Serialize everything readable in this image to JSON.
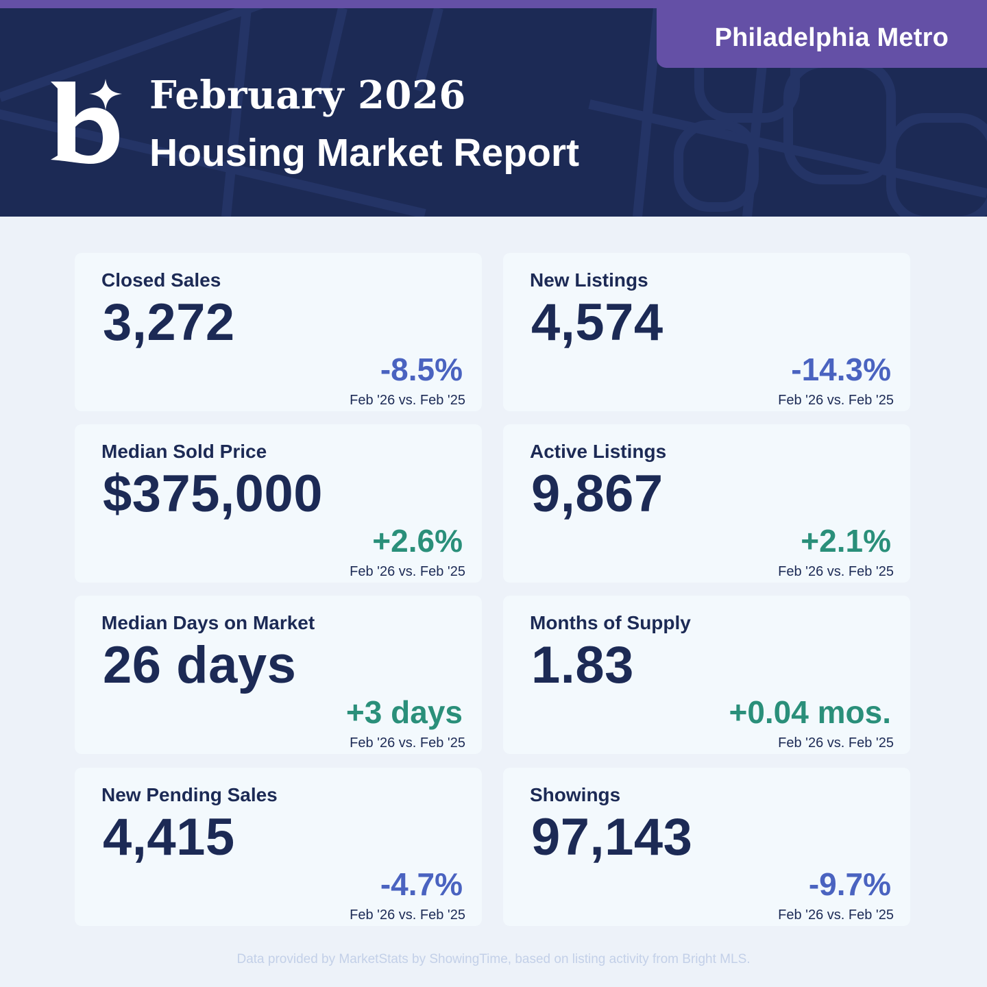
{
  "header": {
    "region": "Philadelphia Metro",
    "title_line1": "February 2026",
    "title_line2": "Housing Market Report",
    "logo_icon": "b-sparkle-logo"
  },
  "colors": {
    "navy": "#1c2a55",
    "purple": "#6450a6",
    "card": "#f3f9fd",
    "page": "#edf2f9",
    "negative": "#4a63c0",
    "positive": "#2a8f7a"
  },
  "cards": [
    {
      "label": "Closed Sales",
      "value": "3,272",
      "change": "-8.5%",
      "trend": "negative",
      "compare": "Feb '26 vs. Feb '25"
    },
    {
      "label": "New Listings",
      "value": "4,574",
      "change": "-14.3%",
      "trend": "negative",
      "compare": "Feb '26 vs. Feb '25"
    },
    {
      "label": "Median Sold Price",
      "value": "$375,000",
      "change": "+2.6%",
      "trend": "positive",
      "compare": "Feb '26 vs. Feb '25"
    },
    {
      "label": "Active Listings",
      "value": "9,867",
      "change": "+2.1%",
      "trend": "positive",
      "compare": "Feb '26 vs. Feb '25"
    },
    {
      "label": "Median Days on Market",
      "value": "26 days",
      "change": "+3 days",
      "trend": "positive",
      "compare": "Feb '26 vs. Feb '25"
    },
    {
      "label": "Months of Supply",
      "value": "1.83",
      "change": "+0.04 mos.",
      "trend": "positive",
      "compare": "Feb '26 vs. Feb '25"
    },
    {
      "label": "New Pending Sales",
      "value": "4,415",
      "change": "-4.7%",
      "trend": "negative",
      "compare": "Feb '26 vs. Feb '25"
    },
    {
      "label": "Showings",
      "value": "97,143",
      "change": "-9.7%",
      "trend": "negative",
      "compare": "Feb '26 vs. Feb '25"
    }
  ],
  "footer": {
    "note": "Data provided by MarketStats by ShowingTime, based on listing activity from Bright MLS."
  }
}
